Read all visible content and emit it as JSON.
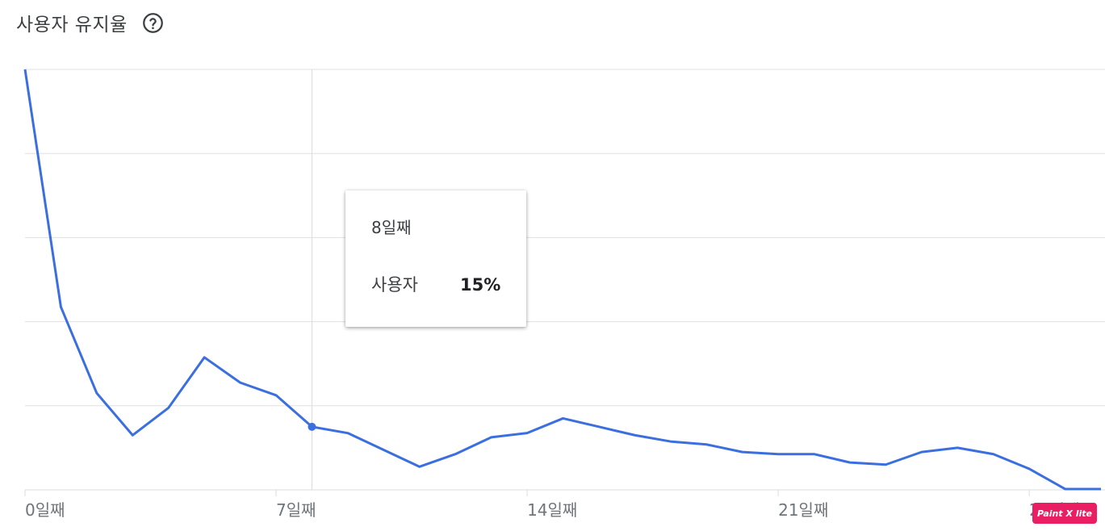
{
  "header": {
    "title": "사용자 유지율",
    "help_icon": "help-circle-icon"
  },
  "chart_data": {
    "type": "line",
    "title": "사용자 유지율",
    "x": [
      0,
      1,
      2,
      3,
      4,
      5,
      6,
      7,
      8,
      9,
      10,
      11,
      12,
      13,
      14,
      15,
      16,
      17,
      18,
      19,
      20,
      21,
      22,
      23,
      24,
      25,
      26,
      27,
      28,
      29,
      30
    ],
    "x_tick_labels": [
      "0일째",
      "7일째",
      "14일째",
      "21일째",
      "28일째"
    ],
    "x_tick_values": [
      0,
      7,
      14,
      21,
      28
    ],
    "series": [
      {
        "values": [
          100,
          43.5,
          23,
          13,
          19.5,
          31.5,
          25.5,
          22.5,
          15,
          13.5,
          9.5,
          5.5,
          8.5,
          12.5,
          13.5,
          17,
          15,
          13,
          11.5,
          10.8,
          9,
          8.5,
          8.5,
          6.5,
          6,
          9,
          10,
          8.5,
          5,
          0.2,
          0.2
        ]
      }
    ],
    "ylim": [
      0,
      100
    ],
    "xlim": [
      0,
      30
    ],
    "grid": true,
    "line_color": "#3b6fe0",
    "hover": {
      "x": 8,
      "day_label": "8일째",
      "series_label": "사용자",
      "value_label": "15%"
    }
  },
  "badge": {
    "label": "Paint X lite",
    "color": "#e91e63"
  }
}
